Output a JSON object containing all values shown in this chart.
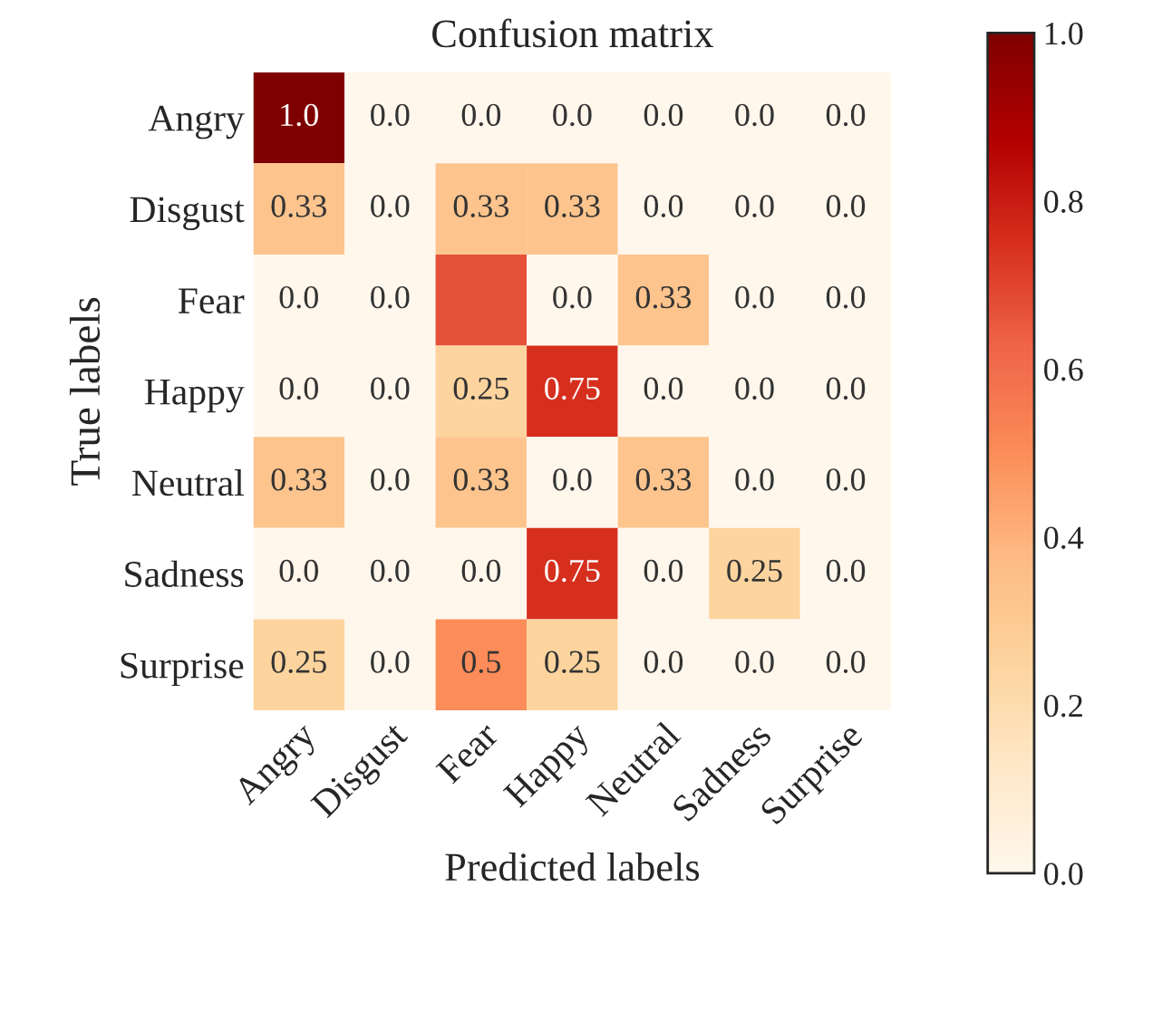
{
  "chart_data": {
    "type": "heatmap",
    "title": "Confusion matrix",
    "xlabel": "Predicted labels",
    "ylabel": "True labels",
    "categories": [
      "Angry",
      "Disgust",
      "Fear",
      "Happy",
      "Neutral",
      "Sadness",
      "Surprise"
    ],
    "y_categories": [
      "Angry",
      "Disgust",
      "Fear",
      "Happy",
      "Neutral",
      "Sadness",
      "Surprise"
    ],
    "cells": [
      [
        1.0,
        0.0,
        0.0,
        0.0,
        0.0,
        0.0,
        0.0
      ],
      [
        0.33,
        0.0,
        0.33,
        0.33,
        0.0,
        0.0,
        0.0
      ],
      [
        0.0,
        0.0,
        0.67,
        0.0,
        0.33,
        0.0,
        0.0
      ],
      [
        0.0,
        0.0,
        0.25,
        0.75,
        0.0,
        0.0,
        0.0
      ],
      [
        0.33,
        0.0,
        0.33,
        0.0,
        0.33,
        0.0,
        0.0
      ],
      [
        0.0,
        0.0,
        0.0,
        0.75,
        0.0,
        0.25,
        0.0
      ],
      [
        0.25,
        0.0,
        0.5,
        0.25,
        0.0,
        0.0,
        0.0
      ]
    ],
    "cell_labels": [
      [
        "1.0",
        "0.0",
        "0.0",
        "0.0",
        "0.0",
        "0.0",
        "0.0"
      ],
      [
        "0.33",
        "0.0",
        "0.33",
        "0.33",
        "0.0",
        "0.0",
        "0.0"
      ],
      [
        "0.0",
        "0.0",
        null,
        "0.0",
        "0.33",
        "0.0",
        "0.0"
      ],
      [
        "0.0",
        "0.0",
        "0.25",
        "0.75",
        "0.0",
        "0.0",
        "0.0"
      ],
      [
        "0.33",
        "0.0",
        "0.33",
        "0.0",
        "0.33",
        "0.0",
        "0.0"
      ],
      [
        "0.0",
        "0.0",
        "0.0",
        "0.75",
        "0.0",
        "0.25",
        "0.0"
      ],
      [
        "0.25",
        "0.0",
        "0.5",
        "0.25",
        "0.0",
        "0.0",
        "0.0"
      ]
    ],
    "clim": [
      0.0,
      1.0
    ],
    "cticks": [
      {
        "value": 0.0,
        "label": "0.0"
      },
      {
        "value": 0.2,
        "label": "0.2"
      },
      {
        "value": 0.4,
        "label": "0.4"
      },
      {
        "value": 0.6,
        "label": "0.6"
      },
      {
        "value": 0.8,
        "label": "0.8"
      },
      {
        "value": 1.0,
        "label": "1.0"
      }
    ]
  }
}
